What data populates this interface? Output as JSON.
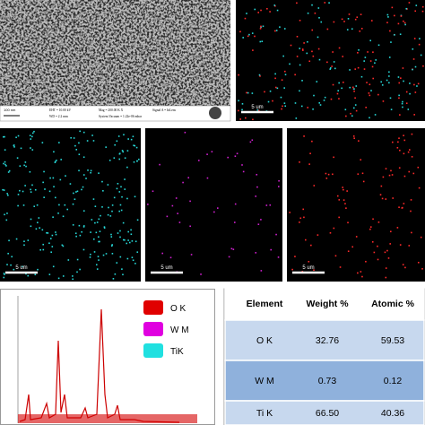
{
  "sem": {
    "scale_bar": "100 nm",
    "info": [
      "EHT = 10.00 kV",
      "Mag = 200.00 K X",
      "Signal A = InLens",
      "WD = 2.2 mm",
      "System Vacuum = 1.22e-06 mbar"
    ]
  },
  "maps": [
    {
      "scale_bar": "5 um",
      "colors": [
        "#ff2a2a",
        "#27d8d8"
      ]
    },
    {
      "scale_bar": "5 um",
      "colors": [
        "#27d8d8"
      ]
    },
    {
      "scale_bar": "5 um",
      "colors": [
        "#d020d0"
      ]
    },
    {
      "scale_bar": "5 um",
      "colors": [
        "#ff2a2a"
      ]
    }
  ],
  "spectrum": {
    "legend": [
      {
        "label": "O K",
        "color": "#e00000"
      },
      {
        "label": "W M",
        "color": "#e000e0"
      },
      {
        "label": "TiK",
        "color": "#20e0e0"
      }
    ]
  },
  "table": {
    "header": [
      "Element",
      "Weight %",
      "Atomic %"
    ],
    "rows": [
      [
        "O K",
        "32.76",
        "59.53"
      ],
      [
        "W M",
        "0.73",
        "0.12"
      ],
      [
        "Ti K",
        "66.50",
        "40.36"
      ]
    ]
  }
}
